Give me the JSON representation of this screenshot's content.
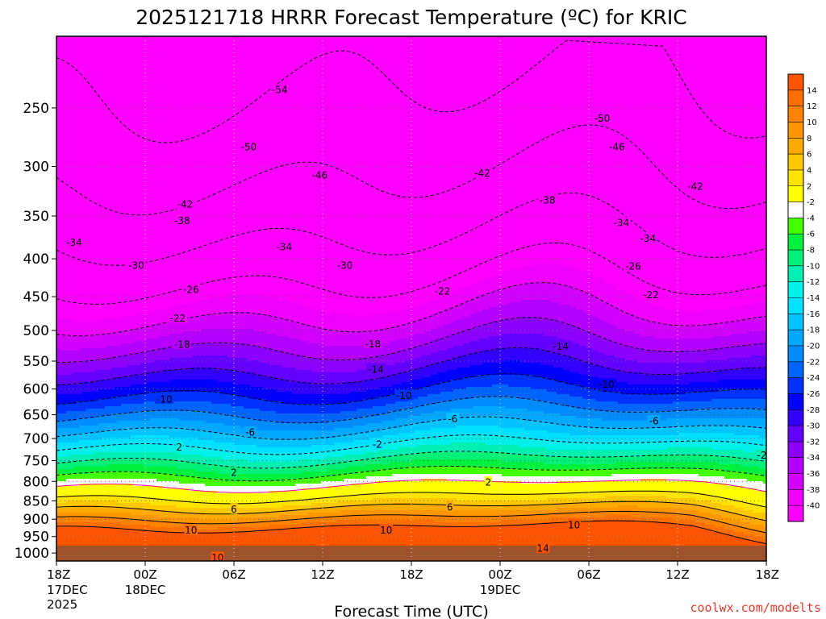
{
  "title": "2025121718 HRRR Forecast Temperature (ºC) for KRIC",
  "credit": "coolwx.com/modelts",
  "chart_data": {
    "type": "heatmap",
    "title": "2025121718 HRRR Forecast Temperature (ºC) for KRIC",
    "xlabel": "Forecast Time (UTC)",
    "ylabel": "",
    "x_ticks": [
      {
        "hour": 0,
        "label": "18Z",
        "sub": [
          "17DEC",
          "2025"
        ]
      },
      {
        "hour": 6,
        "label": "00Z",
        "sub": [
          "18DEC"
        ]
      },
      {
        "hour": 12,
        "label": "06Z",
        "sub": []
      },
      {
        "hour": 18,
        "label": "12Z",
        "sub": []
      },
      {
        "hour": 24,
        "label": "18Z",
        "sub": []
      },
      {
        "hour": 30,
        "label": "00Z",
        "sub": [
          "19DEC"
        ]
      },
      {
        "hour": 36,
        "label": "06Z",
        "sub": []
      },
      {
        "hour": 42,
        "label": "12Z",
        "sub": []
      },
      {
        "hour": 48,
        "label": "18Z",
        "sub": []
      }
    ],
    "x_range_hours": [
      0,
      48
    ],
    "y_axis": {
      "scale": "log",
      "reversed": true,
      "range": [
        1025,
        200
      ],
      "ticks": [
        250,
        300,
        350,
        400,
        450,
        500,
        550,
        600,
        650,
        700,
        750,
        800,
        850,
        900,
        950,
        1000
      ]
    },
    "grid": true,
    "colorbar": {
      "placement": "right",
      "labels": [
        "14",
        "12",
        "10",
        "8",
        "6",
        "4",
        "2",
        "-2",
        "-4",
        "-6",
        "-8",
        "-10",
        "-12",
        "-14",
        "-16",
        "-18",
        "-20",
        "-22",
        "-24",
        "-26",
        "-28",
        "-30",
        "-32",
        "-34",
        "-36",
        "-38",
        "-40"
      ],
      "colors": [
        "#ff5500",
        "#ff6e00",
        "#ff8200",
        "#ff9600",
        "#ffaa00",
        "#ffc800",
        "#ffe400",
        "#ffff00",
        "#ffffff",
        "#44ff00",
        "#00f040",
        "#00f078",
        "#00f0b4",
        "#00f0ea",
        "#00e0ff",
        "#00c4ff",
        "#00a8ff",
        "#008cff",
        "#0064ff",
        "#0032ff",
        "#0000ff",
        "#3200ff",
        "#6400ff",
        "#8c00ff",
        "#b400ff",
        "#d200ff",
        "#f000ff",
        "#ff00ff"
      ]
    },
    "contour_labels": [
      {
        "v": "-54",
        "h": 15.1,
        "p": 236
      },
      {
        "v": "-50",
        "h": 36.9,
        "p": 258
      },
      {
        "v": "-50",
        "h": 13.0,
        "p": 282
      },
      {
        "v": "-46",
        "h": 37.9,
        "p": 282
      },
      {
        "v": "-46",
        "h": 17.8,
        "p": 308
      },
      {
        "v": "-42",
        "h": 28.8,
        "p": 306
      },
      {
        "v": "-42",
        "h": 43.2,
        "p": 319
      },
      {
        "v": "-42",
        "h": 8.7,
        "p": 337
      },
      {
        "v": "-38",
        "h": 33.2,
        "p": 333
      },
      {
        "v": "-38",
        "h": 8.5,
        "p": 355
      },
      {
        "v": "-34",
        "h": 38.2,
        "p": 357
      },
      {
        "v": "-34",
        "h": 40.0,
        "p": 375
      },
      {
        "v": "-34",
        "h": 1.2,
        "p": 380
      },
      {
        "v": "-34",
        "h": 15.4,
        "p": 385
      },
      {
        "v": "-30",
        "h": 5.4,
        "p": 408
      },
      {
        "v": "-30",
        "h": 19.5,
        "p": 408
      },
      {
        "v": "-26",
        "h": 39.0,
        "p": 409
      },
      {
        "v": "-26",
        "h": 9.1,
        "p": 440
      },
      {
        "v": "-22",
        "h": 26.1,
        "p": 442
      },
      {
        "v": "-22",
        "h": 40.2,
        "p": 447
      },
      {
        "v": "-22",
        "h": 8.2,
        "p": 481
      },
      {
        "v": "-18",
        "h": 8.5,
        "p": 522
      },
      {
        "v": "-18",
        "h": 21.4,
        "p": 521
      },
      {
        "v": "-14",
        "h": 34.1,
        "p": 525
      },
      {
        "v": "-14",
        "h": 21.6,
        "p": 564
      },
      {
        "v": "-10",
        "h": 7.3,
        "p": 619
      },
      {
        "v": "-10",
        "h": 23.5,
        "p": 612
      },
      {
        "v": "-10",
        "h": 37.2,
        "p": 591
      },
      {
        "v": "-6",
        "h": 26.8,
        "p": 658
      },
      {
        "v": "-6",
        "h": 13.1,
        "p": 686
      },
      {
        "v": "-6",
        "h": 40.4,
        "p": 662
      },
      {
        "v": "2",
        "h": 8.3,
        "p": 719
      },
      {
        "v": "-2",
        "h": 21.7,
        "p": 712
      },
      {
        "v": "-2",
        "h": 47.7,
        "p": 737
      },
      {
        "v": "2",
        "h": 12.0,
        "p": 778
      },
      {
        "v": "2",
        "h": 29.2,
        "p": 801
      },
      {
        "v": "6",
        "h": 12.0,
        "p": 872
      },
      {
        "v": "6",
        "h": 26.6,
        "p": 866
      },
      {
        "v": "10",
        "h": 9.1,
        "p": 930
      },
      {
        "v": "10",
        "h": 22.3,
        "p": 930
      },
      {
        "v": "10",
        "h": 35.0,
        "p": 915
      },
      {
        "v": "14",
        "h": 32.9,
        "p": 985
      },
      {
        "v": "10",
        "h": 10.9,
        "p": 1013
      }
    ]
  }
}
